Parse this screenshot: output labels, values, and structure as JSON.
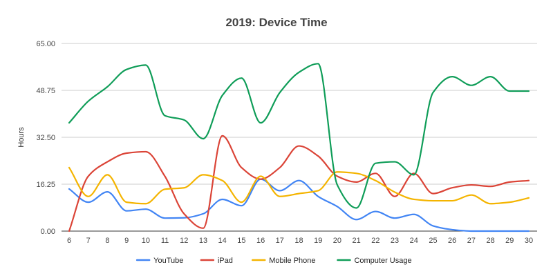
{
  "chart_data": {
    "type": "line",
    "title": "2019: Device Time",
    "xlabel": "",
    "ylabel": "Hours",
    "x": [
      6,
      7,
      8,
      9,
      10,
      11,
      12,
      13,
      14,
      15,
      16,
      17,
      18,
      19,
      20,
      21,
      22,
      23,
      24,
      25,
      26,
      27,
      28,
      29,
      30
    ],
    "y_ticks": [
      "0.00",
      "16.25",
      "32.50",
      "48.75",
      "65.00"
    ],
    "ylim": [
      0,
      65
    ],
    "grid": true,
    "legend_position": "bottom",
    "series": [
      {
        "name": "YouTube",
        "color": "#4285f4",
        "values": [
          14.6,
          10,
          13.6,
          7,
          7.6,
          4.5,
          4.6,
          6,
          11,
          8.8,
          18,
          14,
          17.5,
          12,
          8.5,
          4,
          6.8,
          4.5,
          5.8,
          1.8,
          0.5,
          0,
          0,
          0,
          0
        ]
      },
      {
        "name": "iPad",
        "color": "#db4437",
        "values": [
          0,
          19,
          24,
          27,
          27.5,
          19,
          6,
          1,
          33,
          22,
          18,
          22,
          29.5,
          26,
          19,
          17,
          20,
          12,
          20,
          13,
          15,
          16,
          15.5,
          17,
          17.5
        ]
      },
      {
        "name": "Mobile Phone",
        "color": "#f4b400",
        "values": [
          22,
          12,
          19.5,
          10,
          9.5,
          14.5,
          15,
          19.5,
          17.5,
          10,
          19,
          12,
          13,
          14,
          20.5,
          20,
          17.5,
          13.5,
          11,
          10.5,
          10.5,
          12.5,
          9.5,
          10,
          11.5
        ]
      },
      {
        "name": "Computer Usage",
        "color": "#0f9d58",
        "values": [
          37.5,
          45,
          50,
          56,
          57.5,
          40,
          38.5,
          32,
          47,
          53,
          37.5,
          48,
          55,
          58,
          16,
          8,
          23.5,
          24,
          19.5,
          48,
          53.5,
          50.5,
          53.5,
          48.5,
          48.5
        ]
      }
    ]
  }
}
